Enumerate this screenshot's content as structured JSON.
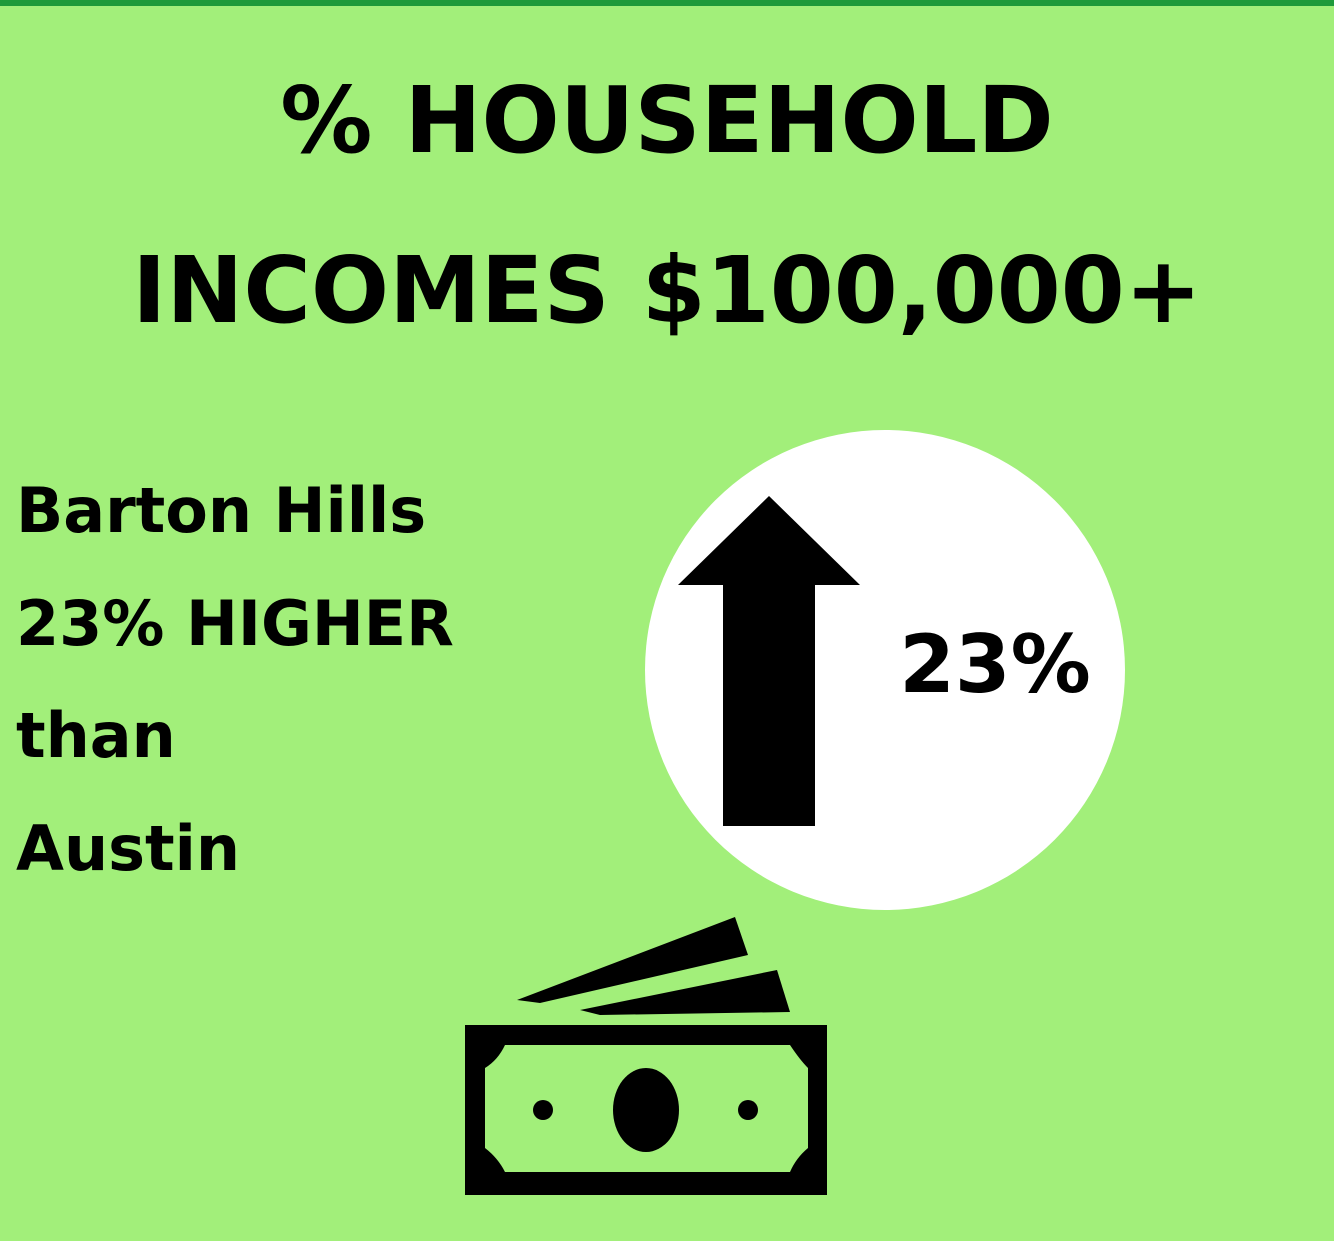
{
  "header": {
    "title_lines": [
      "% HOUSEHOLD",
      "INCOMES $100,000+"
    ]
  },
  "body": {
    "lines": [
      "Barton Hills",
      "23% HIGHER",
      "than",
      "Austin"
    ]
  },
  "badge": {
    "label": "23%"
  }
}
